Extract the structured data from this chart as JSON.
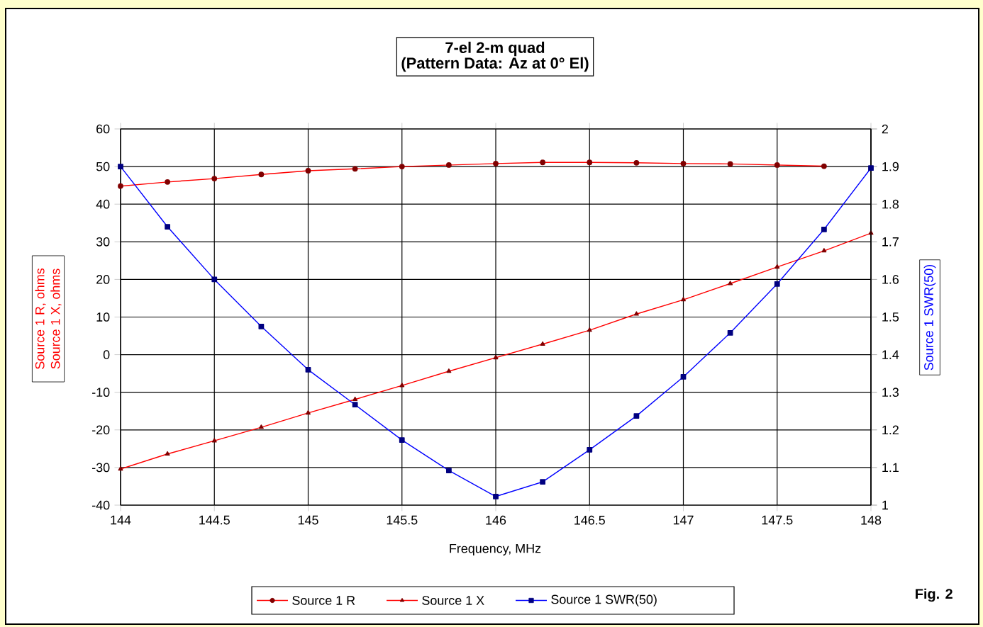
{
  "chart_data": {
    "type": "line",
    "title": "7-el 2-m quad",
    "subtitle": "(Pattern Data: Az at 0° El)",
    "xlabel": "Frequency, MHz",
    "ylabel": "Source 1 R, ohms Source 1 X, ohms",
    "y2label": "Source 1 SWR(50)",
    "annotations": [
      "Fig. 2"
    ],
    "x": [
      144,
      144.25,
      144.5,
      144.75,
      145,
      145.25,
      145.5,
      145.75,
      146,
      146.25,
      146.5,
      146.75,
      147,
      147.25,
      147.5,
      147.75,
      148
    ],
    "series": [
      {
        "name": "Source 1 R",
        "color": "#ff0000",
        "marker": "circle",
        "values": [
          44.8,
          45.9,
          46.8,
          47.9,
          48.9,
          49.4,
          50.0,
          50.4,
          50.8,
          51.1,
          51.1,
          51.0,
          50.8,
          50.7,
          50.4,
          50.1,
          null
        ]
      },
      {
        "name": "Source 1 X",
        "color": "#ff0000",
        "marker": "triangle",
        "values": [
          -30.4,
          -26.4,
          -22.9,
          -19.3,
          -15.5,
          -11.9,
          -8.2,
          -4.4,
          -0.8,
          2.8,
          6.5,
          10.8,
          14.6,
          18.9,
          23.3,
          27.6,
          32.3
        ]
      },
      {
        "name": "Source 1 SWR(50)",
        "color": "#0000ff",
        "marker": "square",
        "axis": "y2",
        "values": [
          1.9,
          1.74,
          1.6,
          1.475,
          1.36,
          1.267,
          1.173,
          1.092,
          1.023,
          1.062,
          1.147,
          1.237,
          1.341,
          1.458,
          1.588,
          1.733,
          1.896
        ]
      }
    ],
    "xlim": [
      144,
      148
    ],
    "xticks": [
      144,
      144.5,
      145,
      145.5,
      146,
      146.5,
      147,
      147.5,
      148
    ],
    "ylim": [
      -40,
      60
    ],
    "yticks": [
      -40,
      -30,
      -20,
      -10,
      0,
      10,
      20,
      30,
      40,
      50,
      60
    ],
    "y2lim": [
      1,
      2
    ],
    "y2ticks": [
      1,
      1.1,
      1.2,
      1.3,
      1.4,
      1.5,
      1.6,
      1.7,
      1.8,
      1.9,
      2
    ],
    "grid": true,
    "legend": "bottom"
  }
}
